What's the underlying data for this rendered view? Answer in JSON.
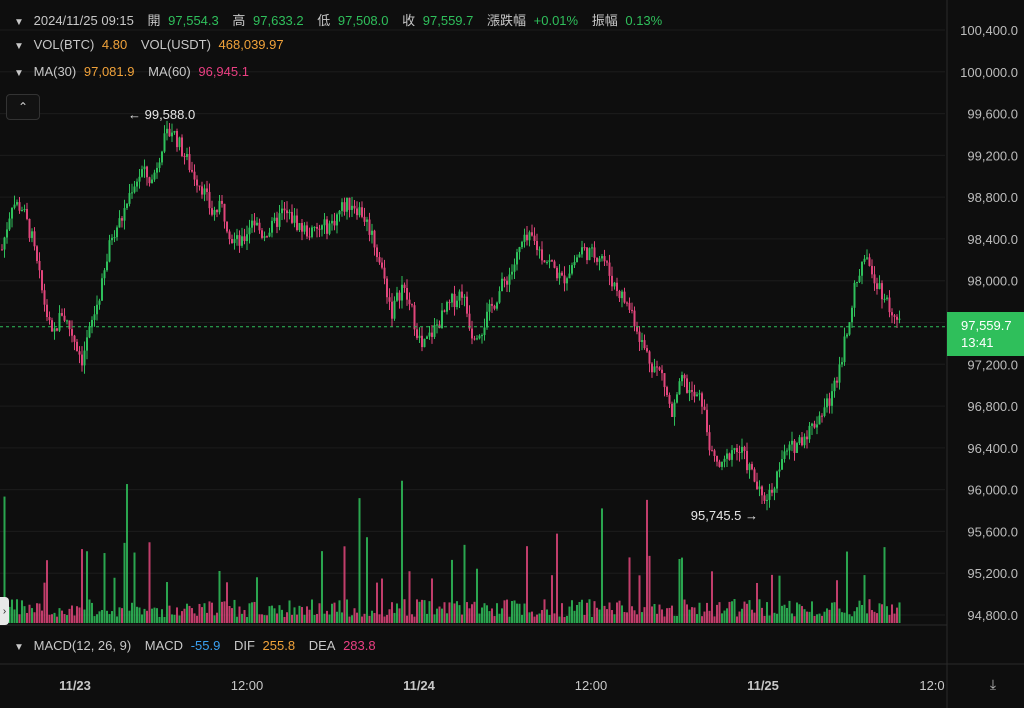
{
  "header": {
    "datetime": "2024/11/25 09:15",
    "open_label": "開",
    "open": "97,554.3",
    "high_label": "高",
    "high": "97,633.2",
    "low_label": "低",
    "low": "97,508.0",
    "close_label": "收",
    "close": "97,559.7",
    "change_label": "漲跌幅",
    "change": "+0.01%",
    "amplitude_label": "振幅",
    "amplitude": "0.13%"
  },
  "volume_header": {
    "btc_label": "VOL(BTC)",
    "btc": "4.80",
    "usdt_label": "VOL(USDT)",
    "usdt": "468,039.97"
  },
  "ma_header": {
    "ma30_label": "MA(30)",
    "ma30": "97,081.9",
    "ma60_label": "MA(60)",
    "ma60": "96,945.1"
  },
  "macd_header": {
    "label": "MACD(12, 26, 9)",
    "macd_label": "MACD",
    "macd": "-55.9",
    "dif_label": "DIF",
    "dif": "255.8",
    "dea_label": "DEA",
    "dea": "283.8"
  },
  "current_price": {
    "price": "97,559.7",
    "countdown": "13:41"
  },
  "annotations": {
    "high": "99,588.0",
    "low": "95,745.5"
  },
  "colors": {
    "up": "#2fbf5b",
    "down": "#e0457b",
    "background": "#0e0e0e",
    "grid": "#1c1c1c",
    "price_line": "#2fbf5b"
  },
  "icons": {
    "collapse": "chevron-up-icon",
    "header_toggle": "chevron-down-icon",
    "axis_reset": "axis-reset-icon"
  },
  "chart_data": {
    "type": "candlestick",
    "y_axis": {
      "ticks": [
        "100,400.0",
        "100,000.0",
        "99,600.0",
        "99,200.0",
        "98,800.0",
        "98,400.0",
        "98,000.0",
        "97,600.0",
        "97,200.0",
        "96,800.0",
        "96,400.0",
        "96,000.0",
        "95,600.0",
        "95,200.0",
        "94,800.0"
      ],
      "ylim": [
        94800,
        100400
      ],
      "position": "right"
    },
    "x_axis": {
      "ticks": [
        "11/23",
        "12:00",
        "11/24",
        "12:00",
        "11/25",
        "12:0"
      ]
    },
    "close_path": [
      [
        0,
        98300
      ],
      [
        4,
        98750
      ],
      [
        8,
        98700
      ],
      [
        12,
        98400
      ],
      [
        16,
        97900
      ],
      [
        20,
        97450
      ],
      [
        24,
        97700
      ],
      [
        28,
        97500
      ],
      [
        32,
        97250
      ],
      [
        36,
        97600
      ],
      [
        40,
        97950
      ],
      [
        44,
        98450
      ],
      [
        48,
        98600
      ],
      [
        52,
        98900
      ],
      [
        56,
        99050
      ],
      [
        60,
        98950
      ],
      [
        64,
        99300
      ],
      [
        68,
        99450
      ],
      [
        72,
        99250
      ],
      [
        76,
        99050
      ],
      [
        80,
        98900
      ],
      [
        84,
        98650
      ],
      [
        88,
        98700
      ],
      [
        92,
        98400
      ],
      [
        96,
        98350
      ],
      [
        100,
        98600
      ],
      [
        104,
        98450
      ],
      [
        108,
        98500
      ],
      [
        112,
        98650
      ],
      [
        116,
        98600
      ],
      [
        120,
        98500
      ],
      [
        124,
        98450
      ],
      [
        128,
        98500
      ],
      [
        132,
        98550
      ],
      [
        136,
        98700
      ],
      [
        140,
        98750
      ],
      [
        144,
        98650
      ],
      [
        148,
        98450
      ],
      [
        152,
        98100
      ],
      [
        156,
        97700
      ],
      [
        160,
        97950
      ],
      [
        164,
        97700
      ],
      [
        168,
        97350
      ],
      [
        172,
        97500
      ],
      [
        176,
        97650
      ],
      [
        180,
        97800
      ],
      [
        184,
        97900
      ],
      [
        188,
        97500
      ],
      [
        192,
        97550
      ],
      [
        196,
        97750
      ],
      [
        200,
        97950
      ],
      [
        204,
        98100
      ],
      [
        208,
        98350
      ],
      [
        212,
        98400
      ],
      [
        216,
        98250
      ],
      [
        220,
        98150
      ],
      [
        224,
        98000
      ],
      [
        228,
        98150
      ],
      [
        232,
        98300
      ],
      [
        236,
        98250
      ],
      [
        240,
        98250
      ],
      [
        244,
        98000
      ],
      [
        248,
        97850
      ],
      [
        252,
        97700
      ],
      [
        256,
        97400
      ],
      [
        260,
        97200
      ],
      [
        264,
        97100
      ],
      [
        268,
        96700
      ],
      [
        272,
        97050
      ],
      [
        276,
        96900
      ],
      [
        280,
        96850
      ],
      [
        284,
        96300
      ],
      [
        288,
        96200
      ],
      [
        292,
        96400
      ],
      [
        296,
        96350
      ],
      [
        300,
        96150
      ],
      [
        304,
        95900
      ],
      [
        308,
        96000
      ],
      [
        312,
        96300
      ],
      [
        316,
        96400
      ],
      [
        320,
        96500
      ],
      [
        324,
        96600
      ],
      [
        328,
        96750
      ],
      [
        332,
        96900
      ],
      [
        336,
        97300
      ],
      [
        340,
        97800
      ],
      [
        344,
        98200
      ],
      [
        348,
        98100
      ],
      [
        352,
        97900
      ],
      [
        356,
        97700
      ],
      [
        359,
        97560
      ]
    ],
    "annotated_high": 99588.0,
    "annotated_low": 95745.5,
    "last_price": 97559.7,
    "volume": {
      "series_desc": "per-candle volume bars",
      "notable_spikes": [
        1,
        50,
        143,
        160,
        240,
        258
      ]
    },
    "legend": {
      "MA(30)": 97081.9,
      "MA(60)": 96945.1
    },
    "grid": true
  }
}
